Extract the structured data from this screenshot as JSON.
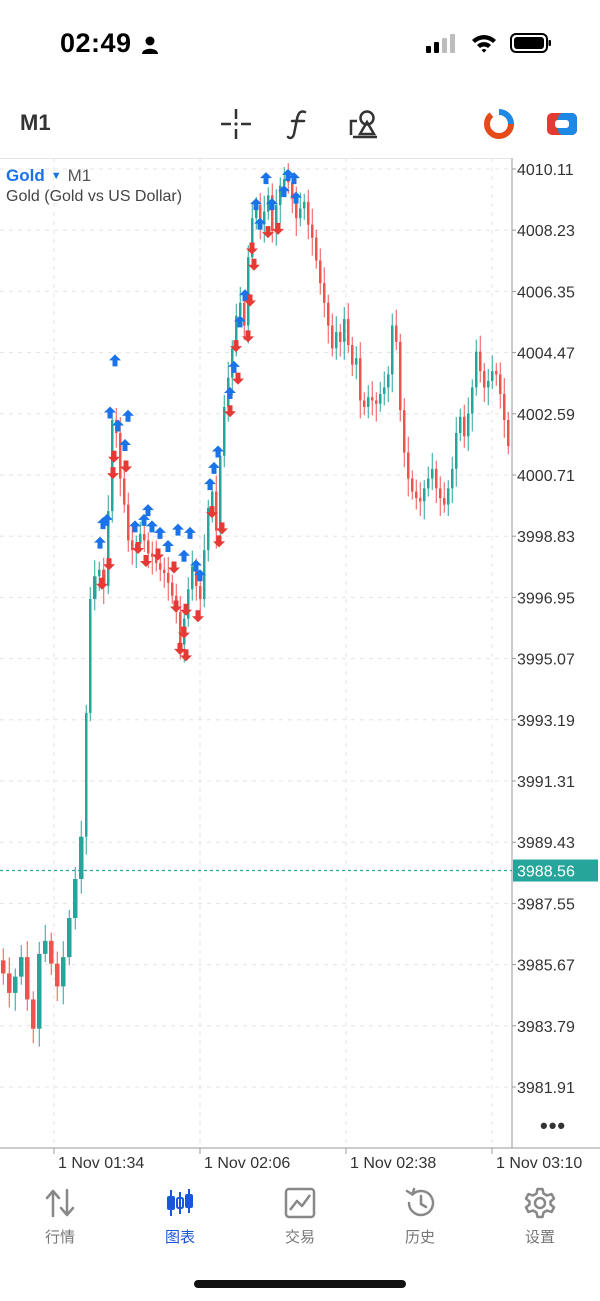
{
  "status_bar": {
    "time": "02:49"
  },
  "toolbar": {
    "timeframe": "M1",
    "icons": [
      "crosshair-icon",
      "indicators-icon",
      "objects-icon",
      "chart-type-icon",
      "trade-icon"
    ]
  },
  "chart": {
    "symbol": "Gold",
    "timeframe": "M1",
    "description": "Gold (Gold vs US Dollar)",
    "current_price": "3988.56",
    "colors": {
      "bull": "#26a69a",
      "bear": "#ef5350",
      "buy_arrow": "#1a73e8",
      "sell_arrow": "#e53935",
      "grid": "#e4e4e4"
    }
  },
  "chart_data": {
    "type": "candlestick",
    "y_ticks": [
      "4010.11",
      "4008.23",
      "4006.35",
      "4004.47",
      "4002.59",
      "4000.71",
      "3998.83",
      "3996.95",
      "3995.07",
      "3993.19",
      "3991.31",
      "3989.43",
      "3987.55",
      "3985.67",
      "3983.79",
      "3981.91"
    ],
    "x_ticks": [
      "1 Nov 01:34",
      "1 Nov 02:06",
      "1 Nov 02:38",
      "1 Nov 03:10"
    ],
    "current_price": 3988.56,
    "grid": true
  },
  "bottom_nav": {
    "items": [
      {
        "label": "行情",
        "icon": "quotes-icon",
        "active": false
      },
      {
        "label": "图表",
        "icon": "chart-icon",
        "active": true
      },
      {
        "label": "交易",
        "icon": "trade-icon",
        "active": false
      },
      {
        "label": "历史",
        "icon": "history-icon",
        "active": false
      },
      {
        "label": "设置",
        "icon": "settings-icon",
        "active": false
      }
    ]
  }
}
